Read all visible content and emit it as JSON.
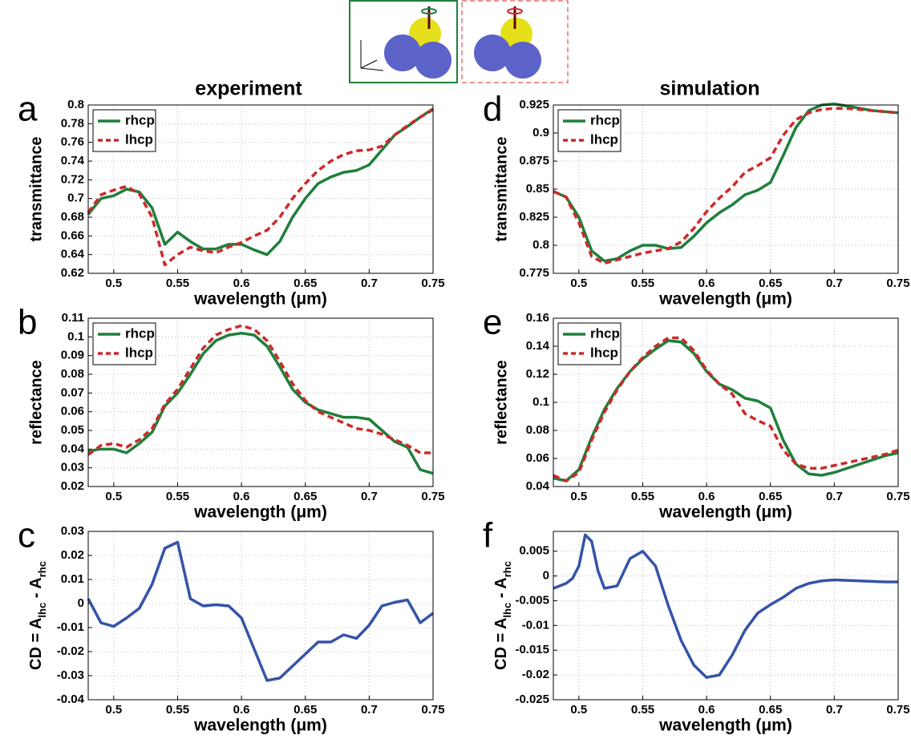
{
  "column_titles": [
    "experiment",
    "simulation"
  ],
  "chart_data": [
    {
      "type": "line",
      "panel_label": "a",
      "xlabel": "wavelength (μm)",
      "ylabel": "transmittance",
      "x": [
        0.48,
        0.49,
        0.5,
        0.51,
        0.52,
        0.53,
        0.54,
        0.55,
        0.56,
        0.57,
        0.58,
        0.59,
        0.6,
        0.61,
        0.62,
        0.63,
        0.64,
        0.65,
        0.66,
        0.67,
        0.68,
        0.69,
        0.7,
        0.71,
        0.72,
        0.73,
        0.74,
        0.75
      ],
      "series": [
        {
          "name": "rhcp",
          "color": "#1f7f3b",
          "linestyle": "solid",
          "values": [
            0.683,
            0.7,
            0.703,
            0.71,
            0.707,
            0.69,
            0.651,
            0.664,
            0.654,
            0.646,
            0.646,
            0.651,
            0.651,
            0.645,
            0.64,
            0.654,
            0.68,
            0.7,
            0.716,
            0.723,
            0.728,
            0.73,
            0.736,
            0.752,
            0.768,
            0.777,
            0.787,
            0.796
          ]
        },
        {
          "name": "lhcp",
          "color": "#cc2a2a",
          "linestyle": "dashed",
          "values": [
            0.685,
            0.704,
            0.709,
            0.713,
            0.705,
            0.68,
            0.629,
            0.64,
            0.648,
            0.644,
            0.642,
            0.648,
            0.653,
            0.66,
            0.666,
            0.68,
            0.7,
            0.716,
            0.73,
            0.74,
            0.747,
            0.751,
            0.752,
            0.756,
            0.768,
            0.778,
            0.787,
            0.795
          ]
        }
      ],
      "xlim": [
        0.48,
        0.75
      ],
      "ylim": [
        0.62,
        0.8
      ],
      "xticks": [
        0.5,
        0.55,
        0.6,
        0.65,
        0.7,
        0.75
      ],
      "yticks": [
        0.62,
        0.64,
        0.66,
        0.68,
        0.7,
        0.72,
        0.74,
        0.76,
        0.78,
        0.8
      ],
      "grid": true,
      "legend": "upper left"
    },
    {
      "type": "line",
      "panel_label": "b",
      "xlabel": "wavelength (μm)",
      "ylabel": "reflectance",
      "x": [
        0.48,
        0.49,
        0.5,
        0.51,
        0.52,
        0.53,
        0.54,
        0.55,
        0.56,
        0.57,
        0.58,
        0.59,
        0.6,
        0.61,
        0.62,
        0.63,
        0.64,
        0.65,
        0.66,
        0.67,
        0.68,
        0.69,
        0.7,
        0.71,
        0.72,
        0.73,
        0.74,
        0.75
      ],
      "series": [
        {
          "name": "rhcp",
          "color": "#1f7f3b",
          "linestyle": "solid",
          "values": [
            0.039,
            0.04,
            0.04,
            0.038,
            0.043,
            0.049,
            0.063,
            0.07,
            0.08,
            0.091,
            0.098,
            0.101,
            0.102,
            0.101,
            0.095,
            0.084,
            0.072,
            0.065,
            0.061,
            0.059,
            0.057,
            0.057,
            0.056,
            0.05,
            0.044,
            0.041,
            0.029,
            0.027
          ]
        },
        {
          "name": "lhcp",
          "color": "#cc2a2a",
          "linestyle": "dashed",
          "values": [
            0.037,
            0.042,
            0.043,
            0.041,
            0.045,
            0.051,
            0.064,
            0.072,
            0.083,
            0.094,
            0.101,
            0.104,
            0.106,
            0.104,
            0.098,
            0.087,
            0.075,
            0.066,
            0.06,
            0.057,
            0.054,
            0.051,
            0.05,
            0.048,
            0.045,
            0.042,
            0.038,
            0.038
          ]
        }
      ],
      "xlim": [
        0.48,
        0.75
      ],
      "ylim": [
        0.02,
        0.11
      ],
      "xticks": [
        0.5,
        0.55,
        0.6,
        0.65,
        0.7,
        0.75
      ],
      "yticks": [
        0.02,
        0.03,
        0.04,
        0.05,
        0.06,
        0.07,
        0.08,
        0.09,
        0.1,
        0.11
      ],
      "grid": true,
      "legend": "upper left"
    },
    {
      "type": "line",
      "panel_label": "c",
      "xlabel": "wavelength (μm)",
      "ylabel": [
        "CD = A",
        "lhc",
        " - A",
        "rhc"
      ],
      "x": [
        0.48,
        0.49,
        0.5,
        0.51,
        0.52,
        0.53,
        0.54,
        0.55,
        0.56,
        0.57,
        0.58,
        0.59,
        0.6,
        0.61,
        0.62,
        0.63,
        0.64,
        0.65,
        0.66,
        0.67,
        0.68,
        0.69,
        0.7,
        0.71,
        0.72,
        0.73,
        0.74,
        0.75
      ],
      "color": "#3553a8",
      "values": [
        0.002,
        -0.008,
        -0.0095,
        -0.006,
        -0.002,
        0.008,
        0.023,
        0.0255,
        0.002,
        -0.001,
        -0.0005,
        -0.001,
        -0.006,
        -0.019,
        -0.032,
        -0.031,
        -0.026,
        -0.021,
        -0.016,
        -0.016,
        -0.013,
        -0.0145,
        -0.009,
        -0.001,
        0.0005,
        0.0015,
        -0.008,
        -0.004
      ],
      "xlim": [
        0.48,
        0.75
      ],
      "ylim": [
        -0.04,
        0.03
      ],
      "xticks": [
        0.5,
        0.55,
        0.6,
        0.65,
        0.7,
        0.75
      ],
      "yticks": [
        -0.04,
        -0.03,
        -0.02,
        -0.01,
        0,
        0.01,
        0.02,
        0.03
      ],
      "grid": true
    },
    {
      "type": "line",
      "panel_label": "d",
      "xlabel": "wavelength (μm)",
      "ylabel": "transmittance",
      "x": [
        0.48,
        0.49,
        0.5,
        0.51,
        0.52,
        0.53,
        0.54,
        0.55,
        0.56,
        0.57,
        0.58,
        0.59,
        0.6,
        0.61,
        0.62,
        0.63,
        0.64,
        0.65,
        0.66,
        0.67,
        0.68,
        0.69,
        0.7,
        0.71,
        0.72,
        0.73,
        0.74,
        0.75
      ],
      "series": [
        {
          "name": "rhcp",
          "color": "#1f7f3b",
          "linestyle": "solid",
          "values": [
            0.848,
            0.843,
            0.825,
            0.795,
            0.786,
            0.788,
            0.795,
            0.8,
            0.8,
            0.797,
            0.798,
            0.808,
            0.82,
            0.829,
            0.836,
            0.845,
            0.849,
            0.856,
            0.88,
            0.905,
            0.92,
            0.925,
            0.926,
            0.924,
            0.922,
            0.92,
            0.919,
            0.918
          ]
        },
        {
          "name": "lhcp",
          "color": "#cc2a2a",
          "linestyle": "dashed",
          "values": [
            0.848,
            0.843,
            0.82,
            0.79,
            0.784,
            0.787,
            0.79,
            0.793,
            0.795,
            0.797,
            0.803,
            0.815,
            0.83,
            0.842,
            0.852,
            0.865,
            0.871,
            0.878,
            0.898,
            0.912,
            0.918,
            0.921,
            0.922,
            0.922,
            0.921,
            0.92,
            0.919,
            0.918
          ]
        }
      ],
      "xlim": [
        0.48,
        0.75
      ],
      "ylim": [
        0.775,
        0.925
      ],
      "xticks": [
        0.5,
        0.55,
        0.6,
        0.65,
        0.7,
        0.75
      ],
      "yticks": [
        0.775,
        0.8,
        0.825,
        0.85,
        0.875,
        0.9,
        0.925
      ],
      "grid": true,
      "legend": "upper left"
    },
    {
      "type": "line",
      "panel_label": "e",
      "xlabel": "wavelength (μm)",
      "ylabel": "reflectance",
      "x": [
        0.48,
        0.49,
        0.5,
        0.51,
        0.52,
        0.53,
        0.54,
        0.55,
        0.56,
        0.57,
        0.58,
        0.59,
        0.6,
        0.61,
        0.62,
        0.63,
        0.64,
        0.65,
        0.66,
        0.67,
        0.68,
        0.69,
        0.7,
        0.71,
        0.72,
        0.73,
        0.74,
        0.75
      ],
      "series": [
        {
          "name": "rhcp",
          "color": "#1f7f3b",
          "linestyle": "solid",
          "values": [
            0.046,
            0.044,
            0.052,
            0.075,
            0.095,
            0.11,
            0.122,
            0.131,
            0.138,
            0.144,
            0.143,
            0.135,
            0.122,
            0.113,
            0.109,
            0.103,
            0.101,
            0.096,
            0.073,
            0.056,
            0.049,
            0.048,
            0.05,
            0.053,
            0.056,
            0.059,
            0.062,
            0.064
          ]
        },
        {
          "name": "lhcp",
          "color": "#cc2a2a",
          "linestyle": "dashed",
          "values": [
            0.048,
            0.044,
            0.05,
            0.073,
            0.093,
            0.109,
            0.122,
            0.132,
            0.14,
            0.146,
            0.146,
            0.137,
            0.123,
            0.113,
            0.106,
            0.092,
            0.087,
            0.083,
            0.066,
            0.056,
            0.053,
            0.053,
            0.055,
            0.057,
            0.059,
            0.061,
            0.063,
            0.066
          ]
        }
      ],
      "xlim": [
        0.48,
        0.75
      ],
      "ylim": [
        0.04,
        0.16
      ],
      "xticks": [
        0.5,
        0.55,
        0.6,
        0.65,
        0.7,
        0.75
      ],
      "yticks": [
        0.04,
        0.06,
        0.08,
        0.1,
        0.12,
        0.14,
        0.16
      ],
      "grid": true,
      "legend": "upper left"
    },
    {
      "type": "line",
      "panel_label": "f",
      "xlabel": "wavelength (μm)",
      "ylabel": [
        "CD = A",
        "lhc",
        " - A",
        "rhc"
      ],
      "x": [
        0.48,
        0.49,
        0.495,
        0.5,
        0.505,
        0.51,
        0.515,
        0.52,
        0.53,
        0.54,
        0.55,
        0.56,
        0.57,
        0.58,
        0.59,
        0.6,
        0.61,
        0.62,
        0.63,
        0.64,
        0.65,
        0.66,
        0.67,
        0.68,
        0.69,
        0.7,
        0.72,
        0.74,
        0.75
      ],
      "color": "#3553a8",
      "values": [
        -0.0025,
        -0.0015,
        -0.0005,
        0.002,
        0.0083,
        0.007,
        0.001,
        -0.0025,
        -0.002,
        0.0035,
        0.005,
        0.002,
        -0.006,
        -0.013,
        -0.018,
        -0.0205,
        -0.02,
        -0.016,
        -0.011,
        -0.0075,
        -0.0058,
        -0.0043,
        -0.0025,
        -0.0015,
        -0.001,
        -0.0008,
        -0.001,
        -0.0012,
        -0.0012
      ],
      "xlim": [
        0.48,
        0.75
      ],
      "ylim": [
        -0.025,
        0.009
      ],
      "xticks": [
        0.5,
        0.55,
        0.6,
        0.65,
        0.7,
        0.75
      ],
      "yticks": [
        -0.025,
        -0.02,
        -0.015,
        -0.01,
        -0.005,
        0,
        0.005
      ],
      "grid": true
    }
  ]
}
